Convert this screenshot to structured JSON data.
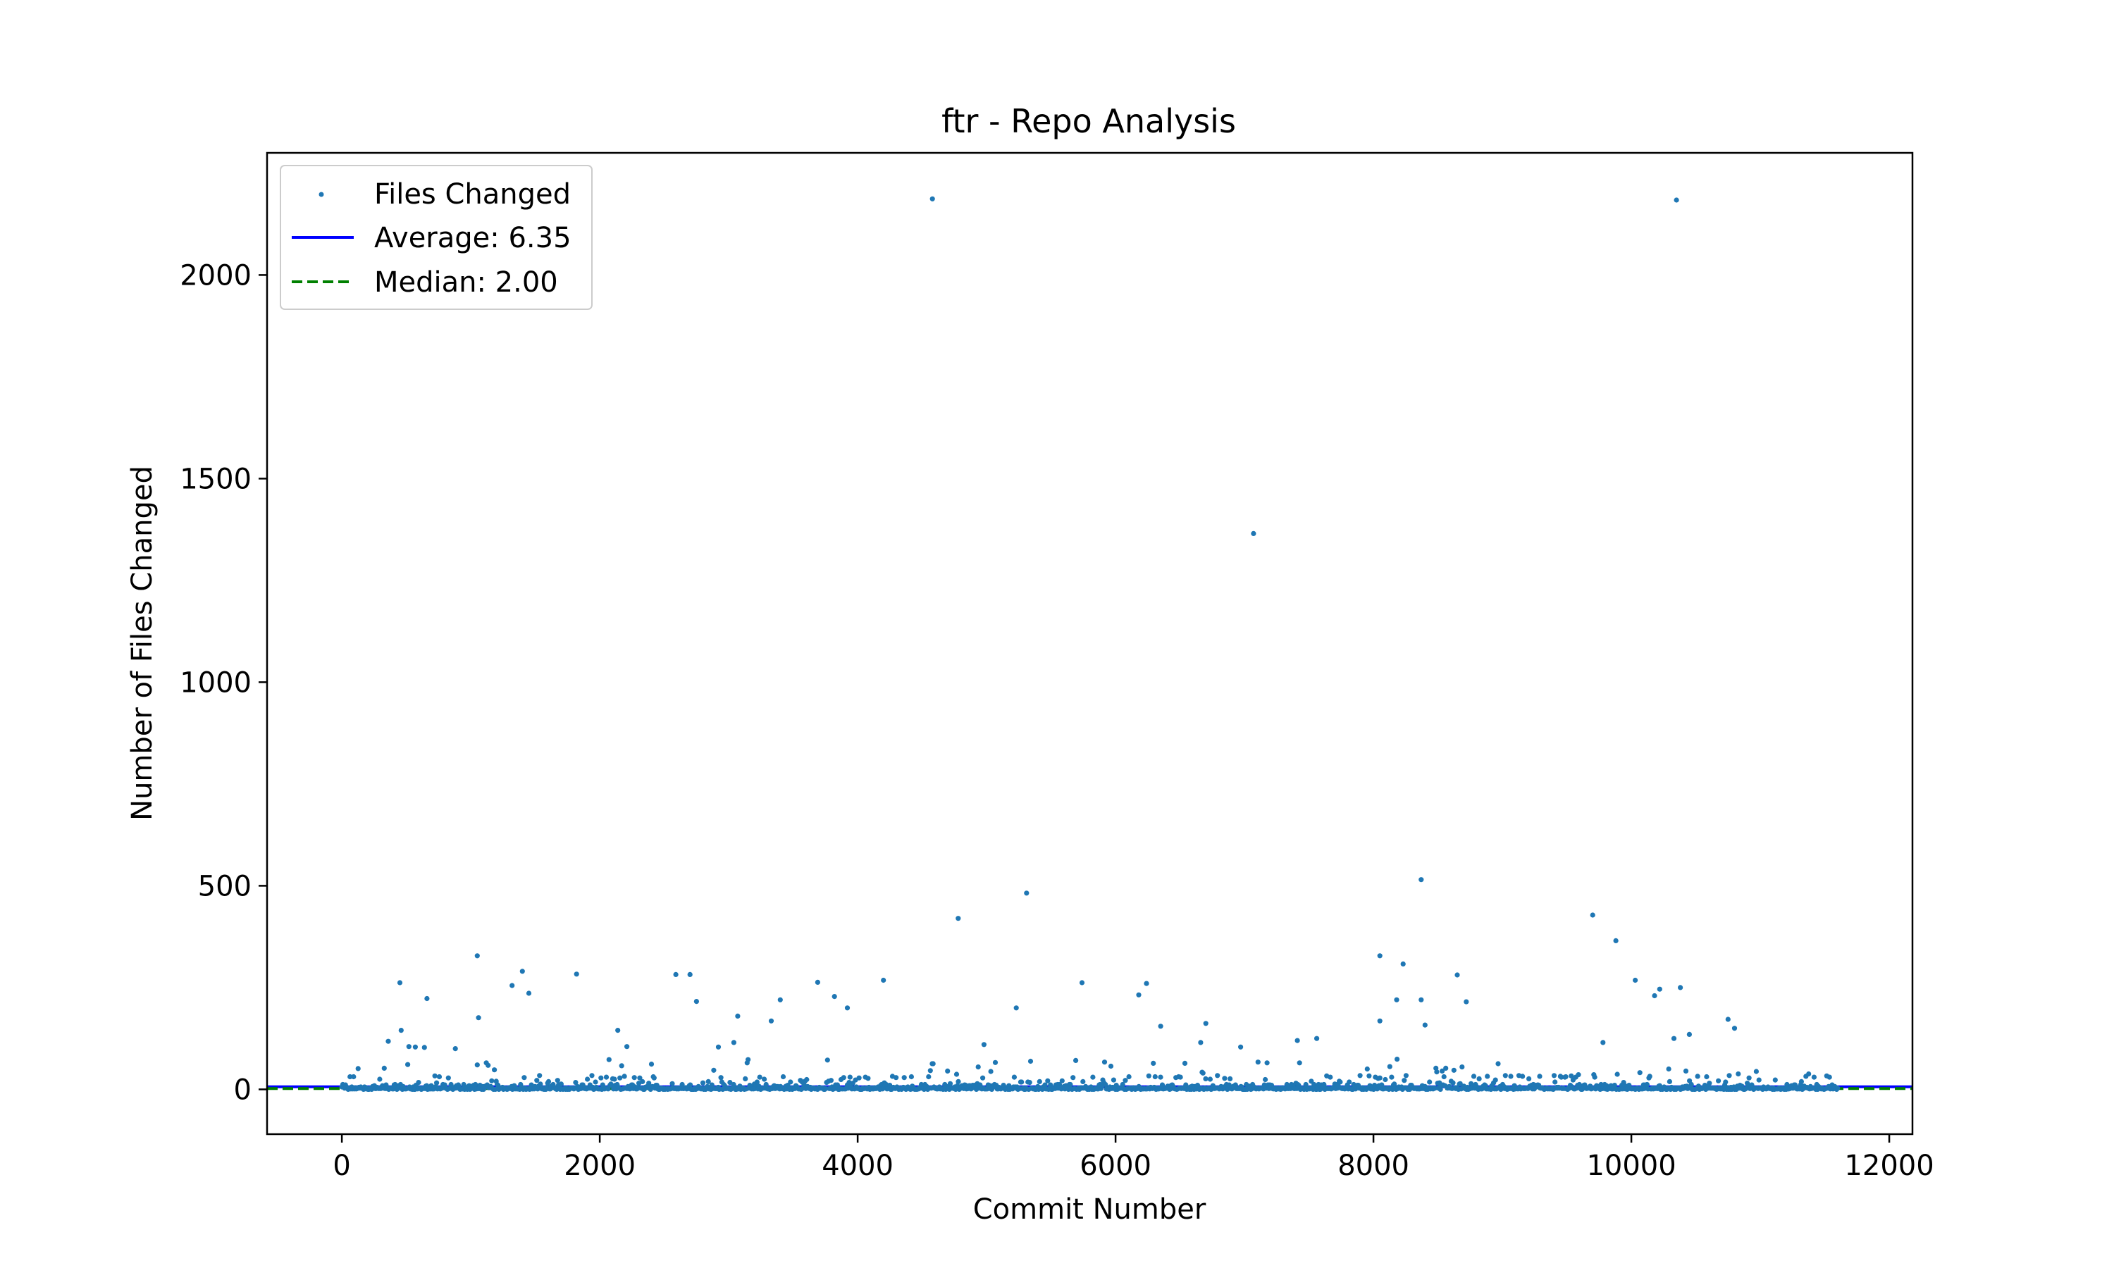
{
  "chart_data": {
    "type": "scatter",
    "title": "ftr - Repo Analysis",
    "xlabel": "Commit Number",
    "ylabel": "Number of Files Changed",
    "xlim": [
      -580,
      12180
    ],
    "ylim": [
      -110,
      2300
    ],
    "xticks": [
      0,
      2000,
      4000,
      6000,
      8000,
      10000,
      12000
    ],
    "yticks": [
      0,
      500,
      1000,
      1500,
      2000
    ],
    "grid": false,
    "legend_position": "top-left",
    "colors": {
      "points": "#1f77b4",
      "average": "#0000ff",
      "median": "#008000"
    },
    "series": [
      {
        "name": "Files Changed",
        "kind": "scatter",
        "x_range": [
          0,
          11600
        ],
        "notable_points": [
          [
            4580,
            2187
          ],
          [
            10350,
            2184
          ],
          [
            7070,
            1365
          ],
          [
            8370,
            515
          ],
          [
            5310,
            482
          ],
          [
            9700,
            428
          ],
          [
            4780,
            420
          ],
          [
            9880,
            365
          ],
          [
            1050,
            328
          ],
          [
            8050,
            328
          ],
          [
            8230,
            308
          ],
          [
            1400,
            290
          ],
          [
            2590,
            282
          ],
          [
            2700,
            282
          ],
          [
            1820,
            283
          ],
          [
            8650,
            281
          ],
          [
            10030,
            268
          ],
          [
            4200,
            268
          ],
          [
            3690,
            263
          ],
          [
            450,
            262
          ],
          [
            5740,
            262
          ],
          [
            6240,
            260
          ],
          [
            1320,
            255
          ],
          [
            10380,
            250
          ],
          [
            10220,
            246
          ],
          [
            1450,
            236
          ],
          [
            6180,
            232
          ],
          [
            10180,
            230
          ],
          [
            3820,
            228
          ],
          [
            660,
            223
          ],
          [
            3400,
            220
          ],
          [
            8370,
            220
          ],
          [
            8180,
            220
          ],
          [
            2750,
            216
          ],
          [
            8720,
            215
          ],
          [
            3920,
            200
          ],
          [
            5230,
            200
          ],
          [
            3070,
            180
          ],
          [
            1060,
            176
          ],
          [
            10750,
            172
          ],
          [
            8050,
            168
          ],
          [
            3330,
            168
          ],
          [
            6700,
            162
          ],
          [
            8400,
            158
          ],
          [
            6350,
            155
          ],
          [
            10800,
            150
          ],
          [
            460,
            145
          ],
          [
            2140,
            145
          ],
          [
            10450,
            135
          ],
          [
            7560,
            125
          ],
          [
            10330,
            125
          ],
          [
            7410,
            120
          ],
          [
            360,
            118
          ],
          [
            3040,
            115
          ],
          [
            6660,
            115
          ],
          [
            9780,
            115
          ],
          [
            4980,
            110
          ],
          [
            520,
            105
          ],
          [
            6970,
            104
          ],
          [
            2210,
            105
          ],
          [
            570,
            104
          ],
          [
            2920,
            104
          ],
          [
            880,
            100
          ],
          [
            640,
            103
          ]
        ]
      },
      {
        "name": "Average: 6.35",
        "kind": "hline",
        "value": 6.35
      },
      {
        "name": "Median: 2.00",
        "kind": "hline",
        "value": 2.0
      }
    ]
  }
}
